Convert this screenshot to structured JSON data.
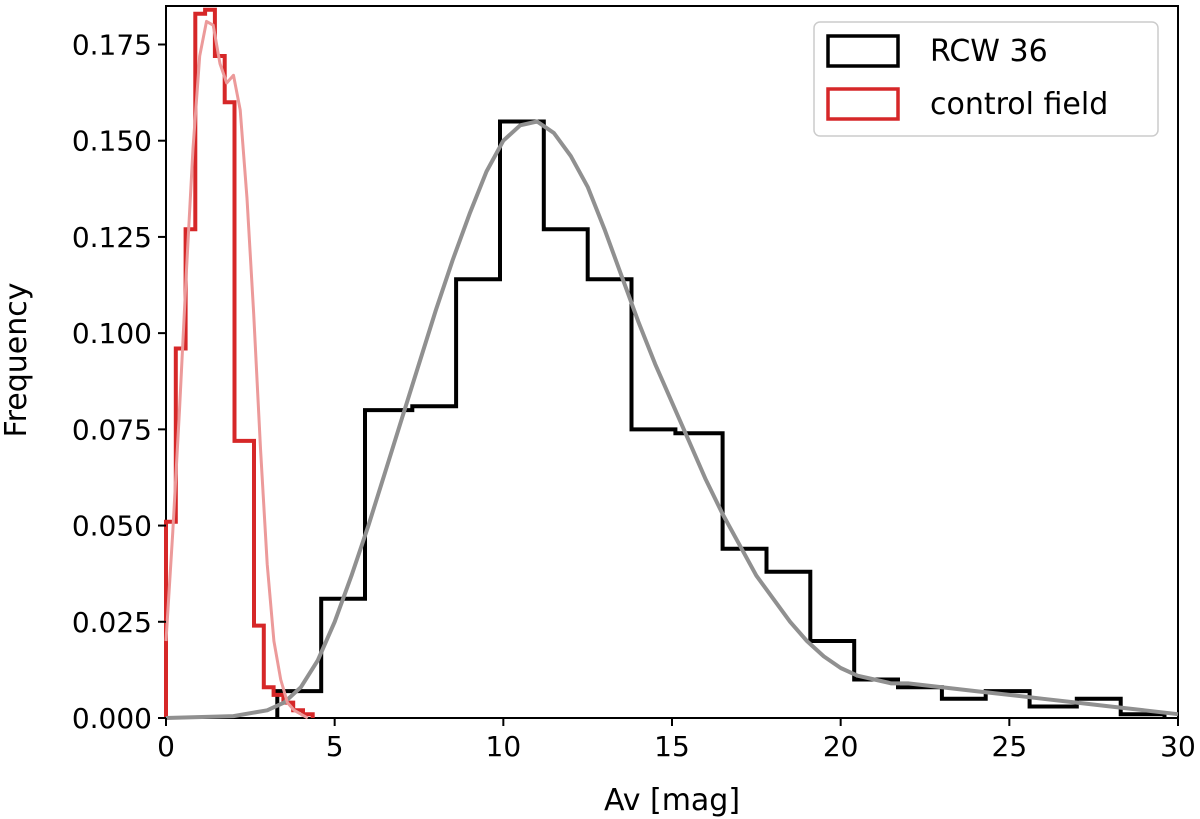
{
  "chart_data": {
    "type": "histogram",
    "title": "",
    "xlabel": "Av [mag]",
    "ylabel": "Frequency",
    "xlim": [
      0,
      30
    ],
    "ylim": [
      0,
      0.185
    ],
    "grid": false,
    "legend_position": "top-right",
    "xticks": [
      0,
      5,
      10,
      15,
      20,
      25,
      30
    ],
    "xtick_labels": [
      "0",
      "5",
      "10",
      "15",
      "20",
      "25",
      "30"
    ],
    "yticks": [
      0,
      0.025,
      0.05,
      0.075,
      0.1,
      0.125,
      0.15,
      0.175
    ],
    "ytick_labels": [
      "0.000",
      "0.025",
      "0.050",
      "0.075",
      "0.100",
      "0.125",
      "0.150",
      "0.175"
    ],
    "series": [
      {
        "name": "RCW 36",
        "color": "#000000",
        "bin_edges": [
          3.3,
          4.6,
          5.9,
          7.3,
          8.6,
          9.9,
          11.2,
          12.5,
          13.8,
          15.1,
          16.5,
          17.8,
          19.1,
          20.4,
          21.7,
          23.0,
          24.3,
          25.6,
          27.0,
          28.3,
          29.6
        ],
        "values": [
          0.007,
          0.031,
          0.08,
          0.081,
          0.114,
          0.155,
          0.127,
          0.114,
          0.075,
          0.074,
          0.044,
          0.038,
          0.02,
          0.01,
          0.008,
          0.005,
          0.007,
          0.003,
          0.005,
          0.001
        ]
      },
      {
        "name": "control field",
        "color": "#d62728",
        "bin_edges": [
          0.0,
          0.29,
          0.58,
          0.87,
          1.16,
          1.45,
          1.74,
          2.03,
          2.32,
          2.61,
          2.9,
          3.19,
          3.48,
          3.77,
          4.06,
          4.35
        ],
        "values": [
          0.051,
          0.096,
          0.127,
          0.183,
          0.184,
          0.172,
          0.16,
          0.072,
          0.072,
          0.024,
          0.008,
          0.006,
          0.004,
          0.002,
          0.001
        ]
      }
    ],
    "fit_curves": [
      {
        "name": "RCW 36 fit",
        "color": "#909090",
        "x": [
          0,
          2,
          3,
          3.5,
          4,
          4.5,
          5,
          5.5,
          6,
          6.5,
          7,
          7.5,
          8,
          8.5,
          9,
          9.5,
          10,
          10.5,
          11,
          11.5,
          12,
          12.5,
          13,
          13.5,
          14,
          14.5,
          15,
          15.5,
          16,
          16.5,
          17,
          17.5,
          18,
          18.5,
          19,
          19.5,
          20,
          20.5,
          21,
          21.5,
          22,
          23,
          24,
          25,
          26,
          27,
          28,
          29,
          30
        ],
        "y": [
          0.0,
          0.0005,
          0.002,
          0.004,
          0.008,
          0.015,
          0.025,
          0.037,
          0.05,
          0.064,
          0.078,
          0.092,
          0.106,
          0.119,
          0.131,
          0.142,
          0.15,
          0.154,
          0.155,
          0.152,
          0.146,
          0.138,
          0.127,
          0.115,
          0.103,
          0.092,
          0.082,
          0.072,
          0.062,
          0.053,
          0.045,
          0.037,
          0.031,
          0.025,
          0.02,
          0.016,
          0.013,
          0.011,
          0.01,
          0.009,
          0.009,
          0.008,
          0.007,
          0.006,
          0.005,
          0.004,
          0.003,
          0.002,
          0.001
        ]
      },
      {
        "name": "control field fit",
        "color": "#ec9a9a",
        "x": [
          0,
          0.2,
          0.4,
          0.6,
          0.8,
          1.0,
          1.2,
          1.4,
          1.6,
          1.8,
          2.0,
          2.2,
          2.4,
          2.6,
          2.8,
          3.0,
          3.2,
          3.4,
          3.6,
          3.8,
          4.0,
          4.2
        ],
        "y": [
          0.02,
          0.048,
          0.08,
          0.115,
          0.148,
          0.172,
          0.181,
          0.18,
          0.17,
          0.165,
          0.167,
          0.158,
          0.135,
          0.105,
          0.07,
          0.04,
          0.02,
          0.01,
          0.004,
          0.002,
          0.001,
          0.0
        ]
      }
    ]
  }
}
